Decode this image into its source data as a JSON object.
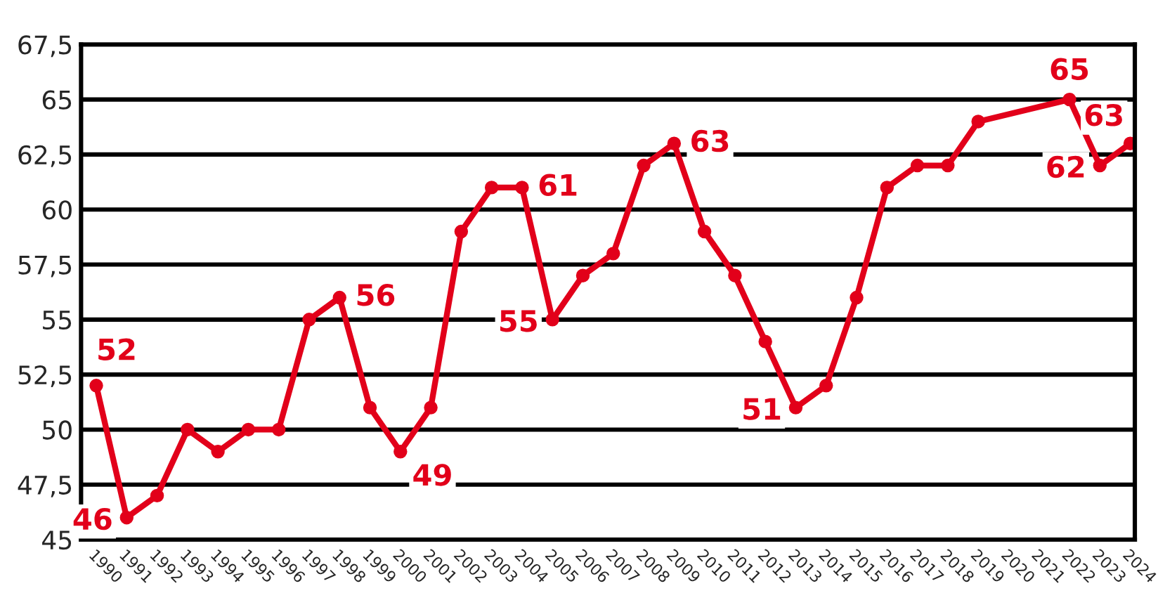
{
  "chart_data": {
    "type": "line",
    "categories": [
      "1990",
      "1991",
      "1992",
      "1993",
      "1994",
      "1995",
      "1996",
      "1997",
      "1998",
      "1999",
      "2000",
      "2001",
      "2002",
      "2003",
      "2004",
      "2005",
      "2006",
      "2007",
      "2008",
      "2009",
      "2010",
      "2011",
      "2012",
      "2013",
      "2014",
      "2015",
      "2016",
      "2017",
      "2018",
      "2019",
      "2020",
      "2021",
      "2022",
      "2023",
      "2024"
    ],
    "series": [
      {
        "color": "#e2001a",
        "values": [
          52,
          46,
          47,
          50,
          49,
          50,
          50,
          55,
          56,
          51,
          49,
          51,
          59,
          61,
          61,
          55,
          57,
          58,
          62,
          63,
          59,
          57,
          54,
          51,
          52,
          56,
          61,
          62,
          62,
          64,
          null,
          null,
          65,
          62,
          63
        ],
        "value_labels": [
          "52",
          "46",
          null,
          null,
          null,
          null,
          null,
          null,
          "56",
          null,
          "49",
          null,
          null,
          null,
          "61",
          "55",
          null,
          null,
          null,
          "63",
          null,
          null,
          null,
          "51",
          null,
          null,
          null,
          null,
          null,
          null,
          null,
          null,
          "65",
          "62",
          "63"
        ]
      }
    ],
    "ylim": [
      45,
      67.5
    ],
    "yticks": [
      45,
      {
        "value": 47.5,
        "label": "47,5"
      },
      50,
      {
        "value": 52.5,
        "label": "52,5"
      },
      55,
      {
        "value": 57.5,
        "label": "57,5"
      },
      60,
      {
        "value": 62.5,
        "label": "62,5"
      },
      65,
      {
        "value": 67.5,
        "label": "67,5"
      }
    ],
    "grid": "y",
    "marker": "circle",
    "line_style": "solid",
    "legend": false
  }
}
